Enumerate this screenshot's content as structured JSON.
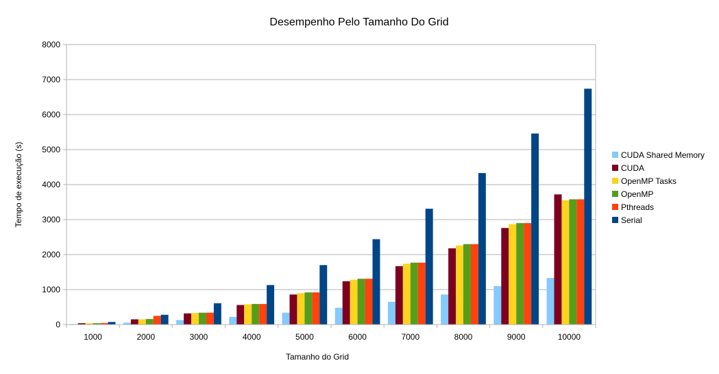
{
  "chart_data": {
    "type": "bar",
    "title": "Desempenho Pelo Tamanho Do Grid",
    "xlabel": "Tamanho do Grid",
    "ylabel": "Tempo de execução (s)",
    "ylim": [
      0,
      8000
    ],
    "yticks": [
      0,
      1000,
      2000,
      3000,
      4000,
      5000,
      6000,
      7000,
      8000
    ],
    "grid": true,
    "legend_position": "right",
    "categories": [
      "1000",
      "2000",
      "3000",
      "4000",
      "5000",
      "6000",
      "7000",
      "8000",
      "9000",
      "10000"
    ],
    "series": [
      {
        "name": "CUDA Shared Memory",
        "color": "#83caff",
        "values": [
          15,
          55,
          130,
          220,
          340,
          480,
          650,
          860,
          1100,
          1330
        ]
      },
      {
        "name": "CUDA",
        "color": "#7e0021",
        "values": [
          40,
          150,
          320,
          560,
          860,
          1240,
          1670,
          2180,
          2760,
          3720
        ]
      },
      {
        "name": "OpenMP Tasks",
        "color": "#ffd320",
        "values": [
          40,
          150,
          330,
          580,
          900,
          1280,
          1740,
          2260,
          2870,
          3550
        ]
      },
      {
        "name": "OpenMP",
        "color": "#579d1c",
        "values": [
          40,
          160,
          340,
          590,
          920,
          1310,
          1770,
          2300,
          2900,
          3580
        ]
      },
      {
        "name": "Pthreads",
        "color": "#ff420e",
        "values": [
          45,
          250,
          340,
          590,
          920,
          1310,
          1770,
          2300,
          2900,
          3580
        ]
      },
      {
        "name": "Serial",
        "color": "#004586",
        "values": [
          75,
          280,
          610,
          1130,
          1700,
          2440,
          3310,
          4330,
          5460,
          6740
        ]
      }
    ]
  }
}
